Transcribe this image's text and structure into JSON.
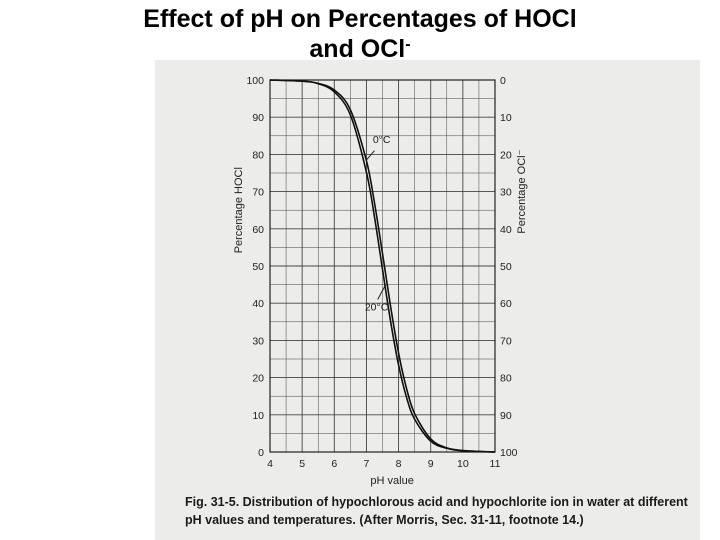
{
  "slide": {
    "title_line1": "Effect of pH on Percentages of HOCl",
    "title_line2": "and OCl",
    "title_sup": "-"
  },
  "figure": {
    "caption_line1": "Fig. 31-5. Distribution of hypochlorous acid and hypochlorite ion in water at different",
    "caption_line2": "pH values and temperatures. (After Morris, Sec. 31-11, footnote 14.)"
  },
  "chart_data": {
    "type": "line",
    "xlabel": "pH value",
    "ylabel_left": "Percentage HOCl",
    "ylabel_right": "Percentage OCl⁻",
    "xlim": [
      4,
      11
    ],
    "ylim_left": [
      0,
      100
    ],
    "ylim_right": [
      100,
      0
    ],
    "x_ticks": [
      "4",
      "5",
      "6",
      "7",
      "8",
      "9",
      "10",
      "11"
    ],
    "y_ticks_left": [
      "0",
      "10",
      "20",
      "30",
      "40",
      "50",
      "60",
      "70",
      "80",
      "90",
      "100"
    ],
    "y_ticks_right": [
      "100",
      "90",
      "80",
      "70",
      "60",
      "50",
      "40",
      "30",
      "20",
      "10",
      "0"
    ],
    "grid": true,
    "series": [
      {
        "name": "0°C",
        "x": [
          4.0,
          5.0,
          5.5,
          6.0,
          6.5,
          7.0,
          7.25,
          7.5,
          7.75,
          8.0,
          8.25,
          8.5,
          9.0,
          9.5,
          10.0,
          11.0
        ],
        "y": [
          100.0,
          99.7,
          99.1,
          97.3,
          92.0,
          78.3,
          67.0,
          53.4,
          39.2,
          26.6,
          17.0,
          10.3,
          3.5,
          1.1,
          0.4,
          0.0
        ]
      },
      {
        "name": "20°C",
        "x": [
          4.0,
          5.0,
          5.5,
          6.0,
          6.5,
          7.0,
          7.25,
          7.5,
          7.75,
          8.0,
          8.25,
          8.5,
          9.0,
          9.5,
          10.0,
          11.0
        ],
        "y": [
          100.0,
          99.7,
          99.0,
          96.8,
          90.6,
          75.2,
          63.2,
          49.1,
          35.2,
          23.4,
          14.6,
          8.8,
          2.9,
          1.0,
          0.3,
          0.0
        ]
      }
    ],
    "annotations": [
      "0°C",
      "20°C"
    ]
  }
}
